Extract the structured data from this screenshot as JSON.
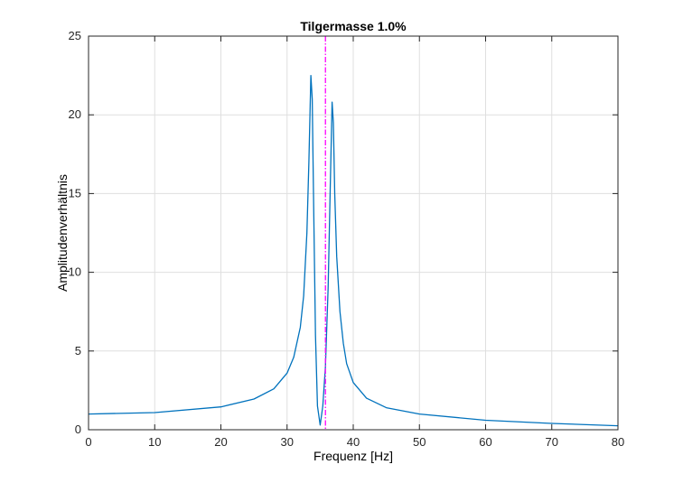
{
  "chart_data": {
    "type": "line",
    "title": "Tilgermasse 1.0%",
    "xlabel": "Frequenz [Hz]",
    "ylabel": "Amplitudenverhältnis",
    "xlim": [
      0,
      80
    ],
    "ylim": [
      0,
      25
    ],
    "xticks": [
      "0",
      "10",
      "20",
      "30",
      "40",
      "50",
      "60",
      "70",
      "80"
    ],
    "yticks": [
      "0",
      "5",
      "10",
      "15",
      "20",
      "25"
    ],
    "grid": true,
    "colors": {
      "series": "#0072BD",
      "marker_line": "#FF00FF"
    },
    "series": [
      {
        "x": [
          0,
          10,
          20,
          25,
          28,
          30,
          31,
          32,
          32.5,
          33,
          33.3,
          33.6,
          33.8,
          34,
          34.3,
          34.6,
          35,
          35.4,
          35.8,
          36.2,
          36.5,
          36.8,
          37,
          37.2,
          37.5,
          38,
          38.5,
          39,
          40,
          42,
          45,
          50,
          60,
          70,
          80
        ],
        "y": [
          1.0,
          1.09,
          1.45,
          1.95,
          2.6,
          3.6,
          4.6,
          6.5,
          8.5,
          12.5,
          17,
          22.5,
          21,
          15,
          6,
          1.5,
          0.3,
          1.5,
          4,
          9,
          15,
          20.8,
          19.5,
          15,
          11,
          7.5,
          5.5,
          4.2,
          3.0,
          2.0,
          1.4,
          1.0,
          0.6,
          0.4,
          0.25
        ]
      }
    ],
    "vline": {
      "x": 35.8,
      "ylim": [
        0,
        25
      ]
    }
  }
}
